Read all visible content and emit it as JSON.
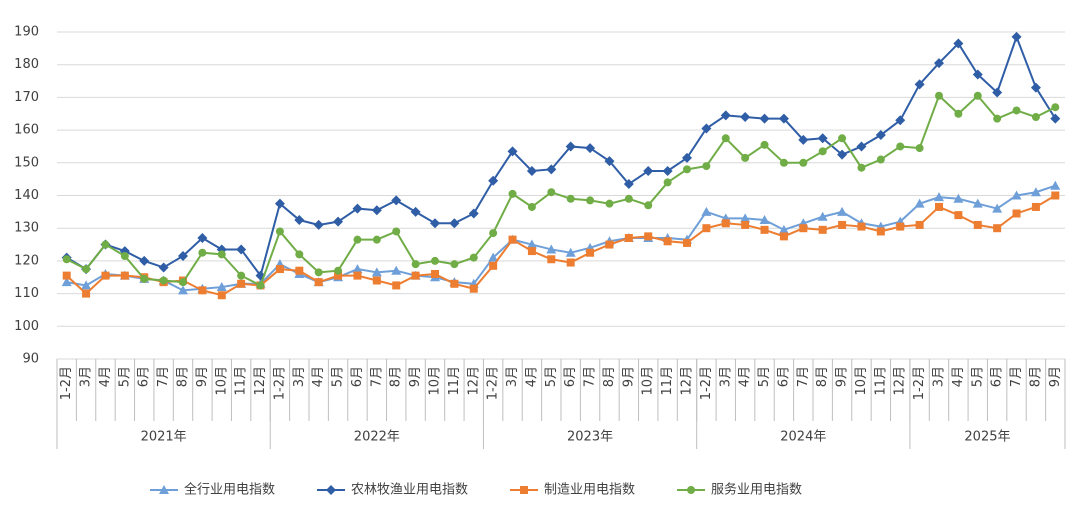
{
  "chart_data": {
    "type": "line",
    "categories": [
      "1-2月",
      "3月",
      "4月",
      "5月",
      "6月",
      "7月",
      "8月",
      "9月",
      "10月",
      "11月",
      "12月",
      "1-2月",
      "3月",
      "4月",
      "5月",
      "6月",
      "7月",
      "8月",
      "9月",
      "10月",
      "11月",
      "12月",
      "1-2月",
      "3月",
      "4月",
      "5月",
      "6月",
      "7月",
      "8月",
      "9月",
      "10月",
      "11月",
      "12月",
      "1-2月",
      "3月",
      "4月",
      "5月",
      "6月",
      "7月",
      "8月",
      "9月",
      "10月",
      "11月",
      "12月",
      "1-2月",
      "3月",
      "4月",
      "5月",
      "6月",
      "7月",
      "8月",
      "9月"
    ],
    "year_labels": [
      "2021年",
      "2022年",
      "2023年",
      "2024年",
      "2025年"
    ],
    "ylim": [
      90,
      190
    ],
    "yticks": [
      90,
      100,
      110,
      120,
      130,
      140,
      150,
      160,
      170,
      180,
      190
    ],
    "grid": true,
    "legend": "bottom",
    "series": [
      {
        "name": "全行业用电指数",
        "color": "#6f9fd8",
        "marker": "triangle",
        "values": [
          113.5,
          112.5,
          116,
          115.5,
          114.5,
          114,
          111,
          111.5,
          112,
          113,
          113,
          119,
          116,
          113.5,
          115,
          117.5,
          116.5,
          117,
          115.5,
          115,
          113.5,
          113,
          121,
          126.5,
          125,
          123.5,
          122.5,
          124,
          126,
          127,
          127,
          127,
          126.5,
          135,
          133,
          133,
          132.5,
          129.5,
          131.5,
          133.5,
          135,
          131.5,
          130.5,
          132,
          137.5,
          139.5,
          139,
          137.5,
          136,
          140,
          141,
          143
        ]
      },
      {
        "name": "农林牧渔业用电指数",
        "color": "#2f5da6",
        "marker": "diamond",
        "values": [
          121,
          117.5,
          125,
          123,
          120,
          118,
          121.5,
          127,
          123.5,
          123.5,
          115.5,
          137.5,
          132.5,
          131,
          132,
          136,
          135.5,
          138.5,
          135,
          131.5,
          131.5,
          134.5,
          144.5,
          153.5,
          147.5,
          148,
          155,
          154.5,
          150.5,
          143.5,
          147.5,
          147.5,
          151.5,
          160.5,
          164.5,
          164,
          163.5,
          163.5,
          157,
          157.5,
          152.5,
          155,
          158.5,
          163,
          174,
          180.5,
          186.5,
          177,
          171.5,
          188.5,
          173,
          163.5
        ]
      },
      {
        "name": "制造业用电指数",
        "color": "#ed7d31",
        "marker": "square",
        "values": [
          115.5,
          110,
          115.5,
          115.5,
          115,
          113.5,
          114,
          111,
          109.5,
          113,
          112.5,
          117.5,
          117,
          113.5,
          115.5,
          115.5,
          114,
          112.5,
          115.5,
          116,
          113,
          111.5,
          118.5,
          126.5,
          123,
          120.5,
          119.5,
          122.5,
          125,
          127,
          127.5,
          126,
          125.5,
          130,
          131.5,
          131,
          129.5,
          127.5,
          130,
          129.5,
          131,
          130.5,
          129,
          130.5,
          131,
          136.5,
          134,
          131,
          130,
          134.5,
          136.5,
          140
        ]
      },
      {
        "name": "服务业用电指数",
        "color": "#70ad47",
        "marker": "circle",
        "values": [
          120.5,
          117.5,
          125,
          121.5,
          114.5,
          114,
          113.5,
          122.5,
          122,
          115.5,
          112.5,
          129,
          122,
          116.5,
          117,
          126.5,
          126.5,
          129,
          119,
          120,
          119,
          121,
          128.5,
          140.5,
          136.5,
          141,
          139,
          138.5,
          137.5,
          139,
          137,
          144,
          148,
          149,
          157.5,
          151.5,
          155.5,
          150,
          150,
          153.5,
          157.5,
          148.5,
          151,
          155,
          154.5,
          170.5,
          165,
          170.5,
          163.5,
          166,
          164,
          167
        ]
      }
    ]
  }
}
